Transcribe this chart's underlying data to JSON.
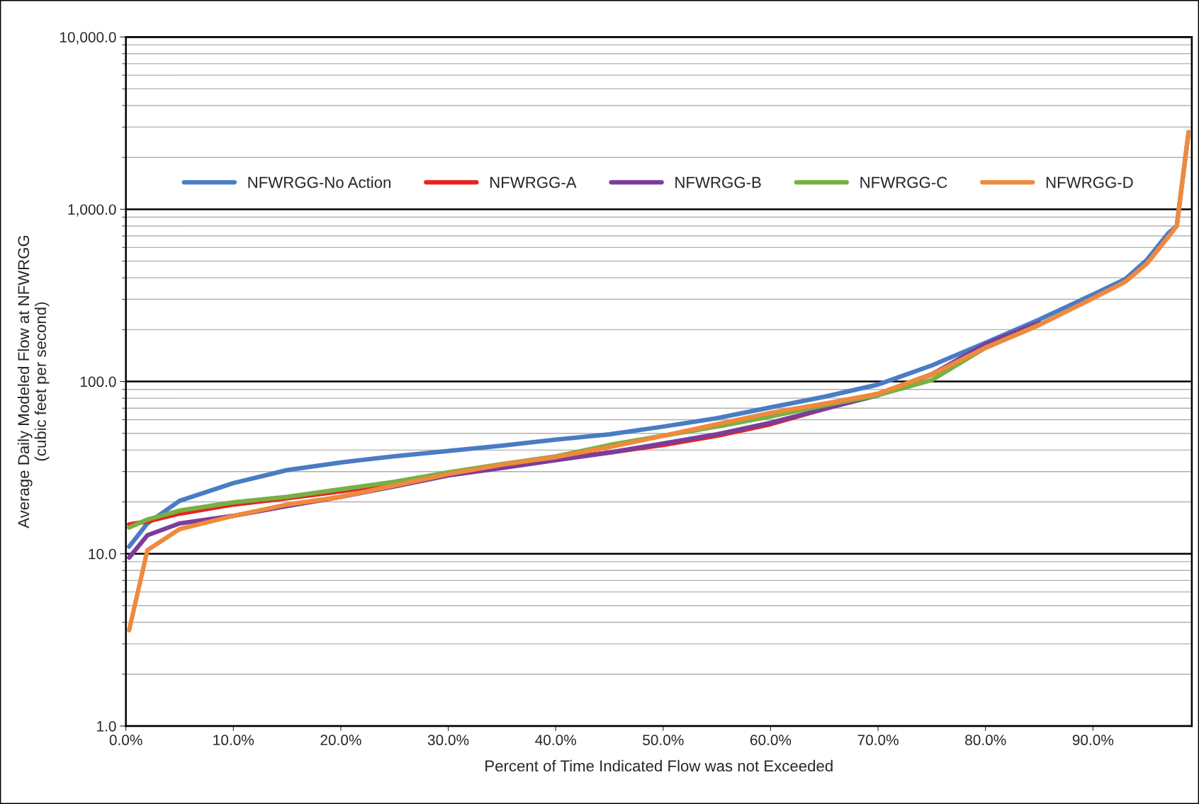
{
  "chart_data": {
    "type": "line",
    "xlabel": "Percent of Time Indicated Flow was not Exceeded",
    "ylabel": "Average Daily Modeled Flow at NFWRGG\n(cubic feet per second)",
    "log": "y",
    "grid": "y",
    "legend": "top",
    "marker": "none",
    "line_style": "solid",
    "xlim": [
      0,
      99.2
    ],
    "xticks": [
      {
        "value": 0,
        "label": "0.0%"
      },
      {
        "value": 10,
        "label": "10.0%"
      },
      {
        "value": 20,
        "label": "20.0%"
      },
      {
        "value": 30,
        "label": "30.0%"
      },
      {
        "value": 40,
        "label": "40.0%"
      },
      {
        "value": 50,
        "label": "50.0%"
      },
      {
        "value": 60,
        "label": "60.0%"
      },
      {
        "value": 70,
        "label": "70.0%"
      },
      {
        "value": 80,
        "label": "80.0%"
      },
      {
        "value": 90,
        "label": "90.0%"
      }
    ],
    "ylim": [
      1,
      10000
    ],
    "yticks": [
      {
        "value": 1,
        "label": "1.0"
      },
      {
        "value": 10,
        "label": "10.0"
      },
      {
        "value": 100,
        "label": "100.0"
      },
      {
        "value": 1000,
        "label": "1,000.0"
      },
      {
        "value": 10000,
        "label": "10,000.0"
      }
    ],
    "x": [
      0.3,
      2,
      5,
      10,
      15,
      20,
      25,
      30,
      35,
      40,
      45,
      50,
      55,
      60,
      65,
      70,
      75,
      80,
      85,
      90,
      93,
      95,
      97,
      97.8,
      98.9
    ],
    "series": [
      {
        "name": "NFWRGG-No Action",
        "color": "#4a7cc4",
        "values": [
          11.0,
          15,
          20.3,
          25.7,
          30.6,
          33.9,
          36.8,
          39.5,
          42.4,
          46,
          49.4,
          54.7,
          61.2,
          70.7,
          81.5,
          96,
          124,
          168,
          229,
          320,
          393,
          507,
          725,
          800,
          2800
        ]
      },
      {
        "name": "NFWRGG-A",
        "color": "#e8231f",
        "values": [
          14.8,
          15.4,
          17.1,
          19.3,
          21,
          23,
          25.7,
          29,
          32.3,
          35.6,
          38.7,
          42.8,
          48.4,
          56.5,
          69.3,
          84.9,
          110,
          157,
          213,
          null,
          null,
          null,
          null,
          null,
          null
        ]
      },
      {
        "name": "NFWRGG-B",
        "color": "#7b3c9c",
        "values": [
          9.5,
          12.8,
          15,
          16.6,
          18.9,
          21.4,
          24.6,
          28.5,
          31.5,
          34.9,
          38.7,
          43.7,
          49.4,
          57.6,
          69.3,
          83.3,
          110,
          165,
          219,
          null,
          null,
          null,
          null,
          null,
          null
        ]
      },
      {
        "name": "NFWRGG-C",
        "color": "#78b043",
        "values": [
          14.2,
          15.8,
          17.8,
          19.9,
          21.4,
          23.7,
          26.2,
          29.7,
          33.2,
          36.7,
          42.8,
          48.4,
          54.7,
          62.6,
          72.8,
          83.3,
          102,
          157,
          213,
          null,
          null,
          null,
          null,
          null,
          null
        ]
      },
      {
        "name": "NFWRGG-D",
        "color": "#ef8a3c",
        "values": [
          3.6,
          10.5,
          13.9,
          16.6,
          19.3,
          21.4,
          24.9,
          29,
          32.9,
          36.4,
          41.6,
          48.4,
          56.5,
          65.8,
          74.3,
          84.9,
          110,
          157,
          213,
          304,
          379,
          482,
          689,
          800,
          2800
        ]
      }
    ]
  }
}
